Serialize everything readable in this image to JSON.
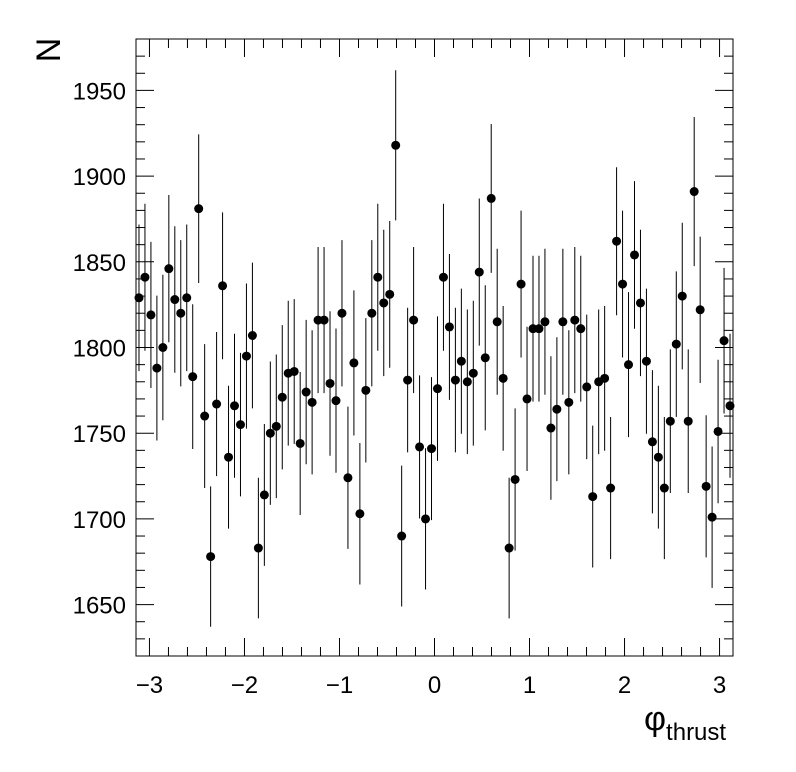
{
  "chart_data": {
    "type": "scatter",
    "title": "",
    "xlabel": "φ",
    "xlabel_subscript": "thrust",
    "ylabel": "N",
    "xlim": [
      -3.1416,
      3.1416
    ],
    "ylim": [
      1620,
      1980
    ],
    "grid": false,
    "legend": "none",
    "x_ticks": [
      -3,
      -2,
      -1,
      0,
      1,
      2,
      3
    ],
    "x_tick_labels": [
      "−3",
      "−2",
      "−1",
      "0",
      "1",
      "2",
      "3"
    ],
    "y_ticks": [
      1650,
      1700,
      1750,
      1800,
      1850,
      1900,
      1950
    ],
    "y_tick_labels": [
      "1650",
      "1700",
      "1750",
      "1800",
      "1850",
      "1900",
      "1950"
    ],
    "marker_color": "#000000",
    "n_bins": 100,
    "values": [
      1829,
      1841,
      1819,
      1788,
      1800,
      1846,
      1828,
      1820,
      1829,
      1783,
      1881,
      1760,
      1678,
      1767,
      1836,
      1736,
      1766,
      1755,
      1795,
      1807,
      1683,
      1714,
      1750,
      1754,
      1771,
      1785,
      1786,
      1744,
      1774,
      1768,
      1816,
      1816,
      1779,
      1769,
      1820,
      1724,
      1791,
      1703,
      1775,
      1820,
      1841,
      1826,
      1831,
      1918,
      1690,
      1781,
      1816,
      1742,
      1700,
      1741,
      1776,
      1841,
      1812,
      1781,
      1792,
      1780,
      1785,
      1844,
      1794,
      1887,
      1815,
      1782,
      1683,
      1723,
      1837,
      1770,
      1811,
      1811,
      1815,
      1753,
      1764,
      1815,
      1768,
      1816,
      1811,
      1777,
      1713,
      1780,
      1782,
      1718,
      1862,
      1837,
      1790,
      1854,
      1826,
      1792,
      1745,
      1736,
      1718,
      1757,
      1802,
      1830,
      1757,
      1891,
      1822,
      1719,
      1701,
      1751,
      1804,
      1766
    ]
  }
}
